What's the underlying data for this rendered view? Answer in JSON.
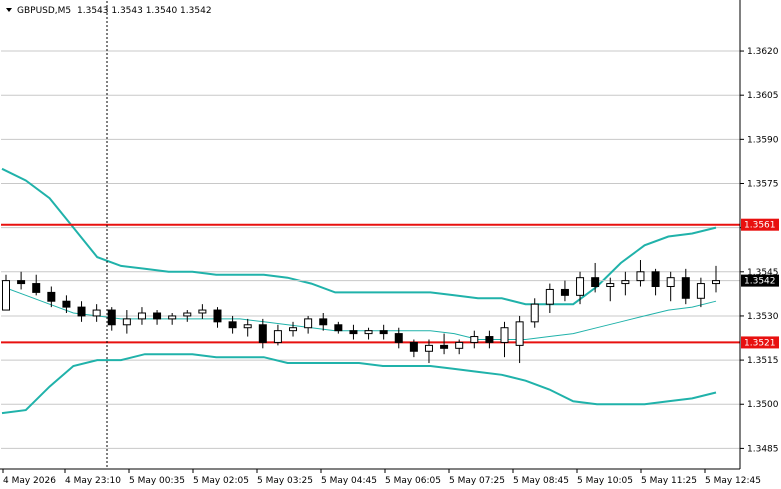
{
  "header": {
    "symbol_label": "GBPUSD,M5",
    "values_label": "1.3543 1.3543 1.3540 1.3542"
  },
  "colors": {
    "bull": "#000000",
    "bear": "#000000",
    "bands": "#20b2aa",
    "level": "#e8100f",
    "grid": "#c8c8c8",
    "last_badge_bg": "#000000",
    "last_badge_fg": "#ffffff",
    "level_badge_fg": "#ffffff"
  },
  "chart_data": {
    "type": "candlestick",
    "title": "GBPUSD,M5",
    "ylim": [
      1.3478,
      1.3637
    ],
    "y_ticks": [
      "1.3620",
      "1.3605",
      "1.3590",
      "1.3575",
      "1.3560",
      "1.3545",
      "1.3530",
      "1.3515",
      "1.3500",
      "1.3485"
    ],
    "x_ticks": [
      "4 May 2026",
      "4 May 23:10",
      "5 May 00:35",
      "5 May 02:05",
      "5 May 03:25",
      "5 May 04:45",
      "5 May 06:05",
      "5 May 07:25",
      "5 May 08:45",
      "5 May 10:05",
      "5 May 11:25",
      "5 May 12:45"
    ],
    "grid": true,
    "period_separator_index": 26,
    "levels": [
      {
        "value": 1.3561,
        "label": "1.3561"
      },
      {
        "value": 1.3521,
        "label": "1.3521"
      }
    ],
    "last_price": {
      "value": 1.3542,
      "label": "1.3542"
    },
    "bollinger": {
      "upper": [
        1.358,
        1.3576,
        1.357,
        1.356,
        1.355,
        1.3547,
        1.3546,
        1.3545,
        1.3545,
        1.3544,
        1.3544,
        1.3544,
        1.3543,
        1.3541,
        1.3538,
        1.3538,
        1.3538,
        1.3538,
        1.3538,
        1.3537,
        1.3536,
        1.3536,
        1.3534,
        1.3534,
        1.3534,
        1.354,
        1.3548,
        1.3554,
        1.3557,
        1.3558,
        1.356
      ],
      "middle": [
        1.354,
        1.3537,
        1.3534,
        1.3531,
        1.353,
        1.3529,
        1.3529,
        1.3529,
        1.3529,
        1.3529,
        1.3529,
        1.3528,
        1.3527,
        1.3526,
        1.3525,
        1.3525,
        1.3525,
        1.3525,
        1.3525,
        1.3524,
        1.3522,
        1.3522,
        1.3522,
        1.3523,
        1.3524,
        1.3526,
        1.3528,
        1.353,
        1.3532,
        1.3533,
        1.3535
      ],
      "lower": [
        1.3497,
        1.3498,
        1.3506,
        1.3513,
        1.3515,
        1.3515,
        1.3517,
        1.3517,
        1.3517,
        1.3516,
        1.3516,
        1.3516,
        1.3514,
        1.3514,
        1.3514,
        1.3514,
        1.3513,
        1.3513,
        1.3513,
        1.3512,
        1.3511,
        1.351,
        1.3508,
        1.3505,
        1.3501,
        1.35,
        1.35,
        1.35,
        1.3501,
        1.3502,
        1.3504
      ]
    },
    "candles": [
      [
        1.3532,
        1.3544,
        1.3532,
        1.3542
      ],
      [
        1.3542,
        1.3545,
        1.3539,
        1.3541
      ],
      [
        1.3541,
        1.3544,
        1.3537,
        1.3538
      ],
      [
        1.3538,
        1.354,
        1.3533,
        1.3535
      ],
      [
        1.3535,
        1.3537,
        1.3531,
        1.3533
      ],
      [
        1.3533,
        1.3535,
        1.3528,
        1.353
      ],
      [
        1.353,
        1.3534,
        1.3528,
        1.3532
      ],
      [
        1.3532,
        1.3533,
        1.3525,
        1.3527
      ],
      [
        1.3527,
        1.3532,
        1.3524,
        1.3529
      ],
      [
        1.3529,
        1.3533,
        1.3527,
        1.3531
      ],
      [
        1.3531,
        1.3532,
        1.3527,
        1.3529
      ],
      [
        1.3529,
        1.3531,
        1.3527,
        1.353
      ],
      [
        1.353,
        1.3532,
        1.3528,
        1.3531
      ],
      [
        1.3531,
        1.3534,
        1.3529,
        1.3532
      ],
      [
        1.3532,
        1.3533,
        1.3526,
        1.3528
      ],
      [
        1.3528,
        1.353,
        1.3524,
        1.3526
      ],
      [
        1.3526,
        1.3529,
        1.3523,
        1.3527
      ],
      [
        1.3527,
        1.3529,
        1.3519,
        1.3521
      ],
      [
        1.3521,
        1.3527,
        1.352,
        1.3525
      ],
      [
        1.3525,
        1.3528,
        1.3523,
        1.3526
      ],
      [
        1.3526,
        1.353,
        1.3524,
        1.3529
      ],
      [
        1.3529,
        1.3531,
        1.3525,
        1.3527
      ],
      [
        1.3527,
        1.3528,
        1.3524,
        1.3525
      ],
      [
        1.3525,
        1.3527,
        1.3522,
        1.3524
      ],
      [
        1.3524,
        1.3526,
        1.3522,
        1.3525
      ],
      [
        1.3525,
        1.3527,
        1.3522,
        1.3524
      ],
      [
        1.3524,
        1.3526,
        1.3519,
        1.3521
      ],
      [
        1.3521,
        1.3522,
        1.3516,
        1.3518
      ],
      [
        1.3518,
        1.3522,
        1.3514,
        1.352
      ],
      [
        1.352,
        1.3524,
        1.3517,
        1.3519
      ],
      [
        1.3519,
        1.3522,
        1.3517,
        1.3521
      ],
      [
        1.3521,
        1.3525,
        1.3519,
        1.3523
      ],
      [
        1.3523,
        1.3525,
        1.3519,
        1.3521
      ],
      [
        1.3521,
        1.3528,
        1.3516,
        1.3526
      ],
      [
        1.352,
        1.353,
        1.3514,
        1.3528
      ],
      [
        1.3528,
        1.3536,
        1.3526,
        1.3534
      ],
      [
        1.3534,
        1.3541,
        1.3531,
        1.3539
      ],
      [
        1.3539,
        1.3542,
        1.3535,
        1.3537
      ],
      [
        1.3537,
        1.3545,
        1.3534,
        1.3543
      ],
      [
        1.3543,
        1.3548,
        1.3538,
        1.354
      ],
      [
        1.354,
        1.3543,
        1.3535,
        1.3541
      ],
      [
        1.3541,
        1.3545,
        1.3537,
        1.3542
      ],
      [
        1.3542,
        1.3549,
        1.354,
        1.3545
      ],
      [
        1.3545,
        1.3546,
        1.3537,
        1.354
      ],
      [
        1.354,
        1.3545,
        1.3535,
        1.3543
      ],
      [
        1.3543,
        1.3546,
        1.3534,
        1.3536
      ],
      [
        1.3536,
        1.3543,
        1.3533,
        1.3541
      ],
      [
        1.3541,
        1.3547,
        1.3538,
        1.3542
      ]
    ]
  }
}
